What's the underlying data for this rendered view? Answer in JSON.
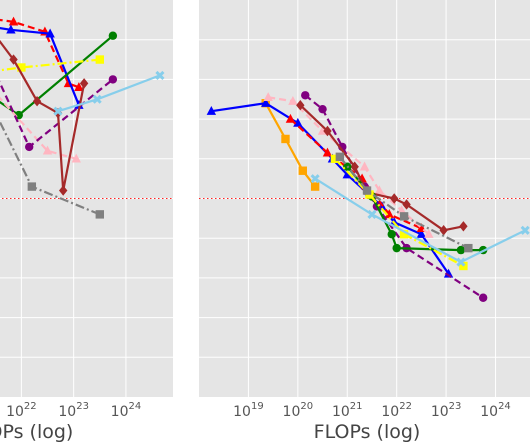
{
  "chart_data": [
    {
      "type": "line",
      "xscale": "log",
      "xlabel": "FLOPs (log)",
      "xlim_log10": [
        21.4,
        24.9
      ],
      "ylim": [
        0,
        10
      ],
      "grid": true,
      "x_ticks": [
        {
          "base": "10",
          "exp": "22",
          "v": 22
        },
        {
          "base": "10",
          "exp": "23",
          "v": 23
        },
        {
          "base": "10",
          "exp": "24",
          "v": 24
        }
      ],
      "reference_line": {
        "y": 5.0,
        "color": "#ff2222",
        "style": "dotted"
      },
      "series": [
        {
          "color": "#ff0000",
          "style": "dashed",
          "marker": "^",
          "points": [
            [
              21.3,
              9.55
            ],
            [
              21.85,
              9.45
            ],
            [
              22.45,
              9.2
            ],
            [
              22.9,
              7.9
            ],
            [
              23.1,
              7.8
            ]
          ]
        },
        {
          "color": "#0000ff",
          "style": "solid",
          "marker": "^",
          "points": [
            [
              21.3,
              9.35
            ],
            [
              21.8,
              9.25
            ],
            [
              22.55,
              9.15
            ],
            [
              23.1,
              7.35
            ]
          ]
        },
        {
          "color": "#008000",
          "style": "solid",
          "marker": "o",
          "points": [
            [
              21.4,
              7.6
            ],
            [
              21.95,
              7.1
            ],
            [
              23.75,
              9.1
            ]
          ]
        },
        {
          "color": "#ffff00",
          "style": "dashdot",
          "marker": "s",
          "points": [
            [
              21.4,
              8.2
            ],
            [
              22.0,
              8.3
            ],
            [
              23.5,
              8.5
            ]
          ]
        },
        {
          "color": "#ffb6c1",
          "style": "dashed",
          "marker": "^",
          "points": [
            [
              21.4,
              7.8
            ],
            [
              22.5,
              6.2
            ],
            [
              23.05,
              6.0
            ]
          ]
        },
        {
          "color": "#800080",
          "style": "dashed",
          "marker": "o",
          "points": [
            [
              21.35,
              8.6
            ],
            [
              22.15,
              6.3
            ],
            [
              23.75,
              8.0
            ]
          ]
        },
        {
          "color": "#a52a2a",
          "style": "solid",
          "marker": "D",
          "points": [
            [
              21.45,
              9.2
            ],
            [
              21.85,
              8.5
            ],
            [
              22.3,
              7.45
            ],
            [
              22.7,
              7.15
            ],
            [
              22.8,
              5.2
            ],
            [
              23.2,
              7.9
            ]
          ]
        },
        {
          "color": "#808080",
          "style": "dashdot",
          "marker": "s",
          "points": [
            [
              21.45,
              7.3
            ],
            [
              22.2,
              5.3
            ],
            [
              23.5,
              4.6
            ]
          ]
        },
        {
          "color": "#87ceeb",
          "style": "solid",
          "marker": "X",
          "points": [
            [
              22.7,
              7.2
            ],
            [
              23.45,
              7.5
            ],
            [
              24.65,
              8.1
            ]
          ]
        }
      ]
    },
    {
      "type": "line",
      "xscale": "log",
      "xlabel": "FLOPs (log)",
      "xlim_log10": [
        18.0,
        24.9
      ],
      "ylim": [
        0,
        10
      ],
      "grid": true,
      "x_ticks": [
        {
          "base": "10",
          "exp": "19",
          "v": 19
        },
        {
          "base": "10",
          "exp": "20",
          "v": 20
        },
        {
          "base": "10",
          "exp": "21",
          "v": 21
        },
        {
          "base": "10",
          "exp": "22",
          "v": 22
        },
        {
          "base": "10",
          "exp": "23",
          "v": 23
        },
        {
          "base": "10",
          "exp": "24",
          "v": 24
        }
      ],
      "reference_line": {
        "y": 5.0,
        "color": "#ff2222",
        "style": "dotted"
      },
      "series": [
        {
          "color": "#ffa500",
          "style": "solid",
          "marker": "s",
          "points": [
            [
              19.35,
              7.4
            ],
            [
              19.75,
              6.5
            ],
            [
              20.1,
              5.7
            ],
            [
              20.35,
              5.3
            ]
          ]
        },
        {
          "color": "#0000ff",
          "style": "solid",
          "marker": "^",
          "points": [
            [
              18.25,
              7.2
            ],
            [
              19.35,
              7.4
            ],
            [
              20.0,
              6.9
            ],
            [
              20.7,
              6.0
            ],
            [
              21.0,
              5.6
            ],
            [
              21.7,
              4.8
            ],
            [
              21.95,
              4.4
            ],
            [
              22.5,
              4.1
            ],
            [
              23.05,
              3.1
            ]
          ]
        },
        {
          "color": "#ff0000",
          "style": "dashed",
          "marker": "^",
          "points": [
            [
              19.85,
              7.0
            ],
            [
              20.6,
              6.15
            ],
            [
              21.3,
              5.5
            ],
            [
              21.85,
              4.6
            ],
            [
              22.5,
              4.25
            ]
          ]
        },
        {
          "color": "#ffb6c1",
          "style": "dashed",
          "marker": "^",
          "points": [
            [
              19.4,
              7.55
            ],
            [
              19.9,
              7.45
            ],
            [
              20.5,
              6.7
            ],
            [
              21.35,
              5.8
            ],
            [
              21.65,
              5.2
            ],
            [
              22.1,
              4.7
            ],
            [
              22.65,
              4.1
            ]
          ]
        },
        {
          "color": "#800080",
          "style": "dashed",
          "marker": "o",
          "points": [
            [
              20.15,
              7.6
            ],
            [
              20.5,
              7.25
            ],
            [
              20.9,
              6.3
            ],
            [
              21.35,
              5.3
            ],
            [
              21.6,
              4.8
            ],
            [
              22.2,
              3.75
            ],
            [
              23.75,
              2.5
            ]
          ]
        },
        {
          "color": "#a52a2a",
          "style": "solid",
          "marker": "D",
          "points": [
            [
              20.05,
              7.35
            ],
            [
              20.6,
              6.7
            ],
            [
              21.15,
              5.8
            ],
            [
              21.4,
              5.15
            ],
            [
              21.95,
              5.0
            ],
            [
              22.2,
              4.85
            ],
            [
              22.95,
              4.2
            ],
            [
              23.35,
              4.3
            ]
          ]
        },
        {
          "color": "#008000",
          "style": "solid",
          "marker": "o",
          "points": [
            [
              21.0,
              5.8
            ],
            [
              21.5,
              5.05
            ],
            [
              21.9,
              4.1
            ],
            [
              22.0,
              3.75
            ],
            [
              23.3,
              3.7
            ],
            [
              23.75,
              3.7
            ]
          ]
        },
        {
          "color": "#ffff00",
          "style": "dashdot",
          "marker": "s",
          "points": [
            [
              20.75,
              6.0
            ],
            [
              21.45,
              5.1
            ],
            [
              22.15,
              4.1
            ],
            [
              23.35,
              3.3
            ]
          ]
        },
        {
          "color": "#808080",
          "style": "dashdot",
          "marker": "s",
          "points": [
            [
              20.85,
              6.05
            ],
            [
              21.4,
              5.2
            ],
            [
              22.15,
              4.55
            ],
            [
              23.45,
              3.75
            ]
          ]
        },
        {
          "color": "#87ceeb",
          "style": "solid",
          "marker": "X",
          "points": [
            [
              20.35,
              5.5
            ],
            [
              21.5,
              4.6
            ],
            [
              23.3,
              3.4
            ],
            [
              24.6,
              4.2
            ]
          ]
        }
      ]
    }
  ]
}
